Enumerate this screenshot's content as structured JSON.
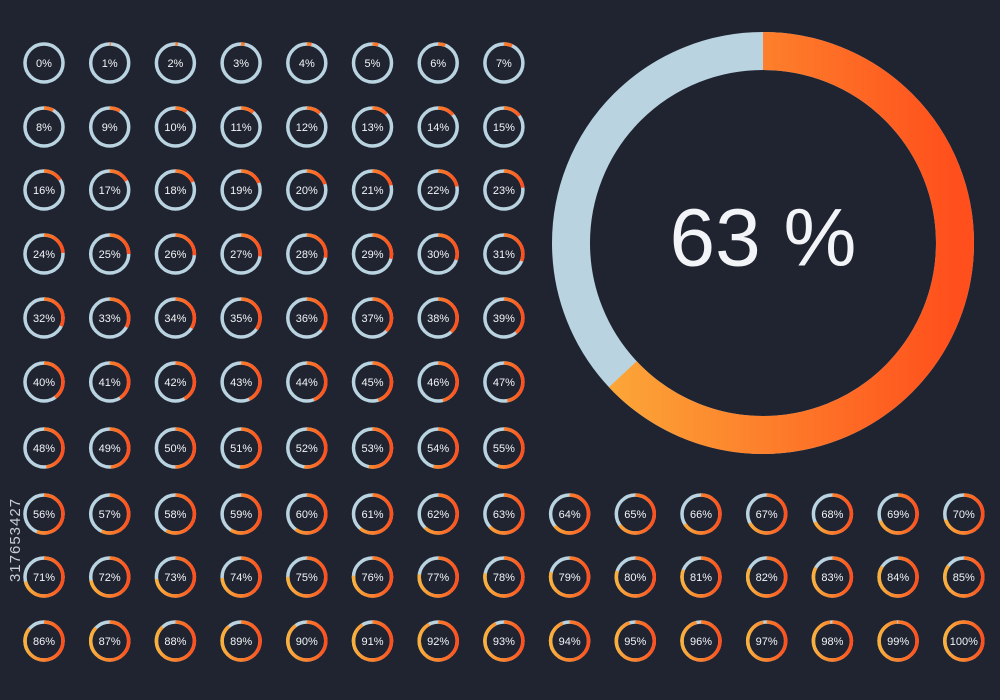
{
  "rings": [
    {
      "value": 0,
      "label": "0%"
    },
    {
      "value": 1,
      "label": "1%"
    },
    {
      "value": 2,
      "label": "2%"
    },
    {
      "value": 3,
      "label": "3%"
    },
    {
      "value": 4,
      "label": "4%"
    },
    {
      "value": 5,
      "label": "5%"
    },
    {
      "value": 6,
      "label": "6%"
    },
    {
      "value": 7,
      "label": "7%"
    },
    {
      "value": 8,
      "label": "8%"
    },
    {
      "value": 9,
      "label": "9%"
    },
    {
      "value": 10,
      "label": "10%"
    },
    {
      "value": 11,
      "label": "11%"
    },
    {
      "value": 12,
      "label": "12%"
    },
    {
      "value": 13,
      "label": "13%"
    },
    {
      "value": 14,
      "label": "14%"
    },
    {
      "value": 15,
      "label": "15%"
    },
    {
      "value": 16,
      "label": "16%"
    },
    {
      "value": 17,
      "label": "17%"
    },
    {
      "value": 18,
      "label": "18%"
    },
    {
      "value": 19,
      "label": "19%"
    },
    {
      "value": 20,
      "label": "20%"
    },
    {
      "value": 21,
      "label": "21%"
    },
    {
      "value": 22,
      "label": "22%"
    },
    {
      "value": 23,
      "label": "23%"
    },
    {
      "value": 24,
      "label": "24%"
    },
    {
      "value": 25,
      "label": "25%"
    },
    {
      "value": 26,
      "label": "26%"
    },
    {
      "value": 27,
      "label": "27%"
    },
    {
      "value": 28,
      "label": "28%"
    },
    {
      "value": 29,
      "label": "29%"
    },
    {
      "value": 30,
      "label": "30%"
    },
    {
      "value": 31,
      "label": "31%"
    },
    {
      "value": 32,
      "label": "32%"
    },
    {
      "value": 33,
      "label": "33%"
    },
    {
      "value": 34,
      "label": "34%"
    },
    {
      "value": 35,
      "label": "35%"
    },
    {
      "value": 36,
      "label": "36%"
    },
    {
      "value": 37,
      "label": "37%"
    },
    {
      "value": 38,
      "label": "38%"
    },
    {
      "value": 39,
      "label": "39%"
    },
    {
      "value": 40,
      "label": "40%"
    },
    {
      "value": 41,
      "label": "41%"
    },
    {
      "value": 42,
      "label": "42%"
    },
    {
      "value": 43,
      "label": "43%"
    },
    {
      "value": 44,
      "label": "44%"
    },
    {
      "value": 45,
      "label": "45%"
    },
    {
      "value": 46,
      "label": "46%"
    },
    {
      "value": 47,
      "label": "47%"
    },
    {
      "value": 48,
      "label": "48%"
    },
    {
      "value": 49,
      "label": "49%"
    },
    {
      "value": 50,
      "label": "50%"
    },
    {
      "value": 51,
      "label": "51%"
    },
    {
      "value": 52,
      "label": "52%"
    },
    {
      "value": 53,
      "label": "53%"
    },
    {
      "value": 54,
      "label": "54%"
    },
    {
      "value": 55,
      "label": "55%"
    },
    {
      "value": 56,
      "label": "56%"
    },
    {
      "value": 57,
      "label": "57%"
    },
    {
      "value": 58,
      "label": "58%"
    },
    {
      "value": 59,
      "label": "59%"
    },
    {
      "value": 60,
      "label": "60%"
    },
    {
      "value": 61,
      "label": "61%"
    },
    {
      "value": 62,
      "label": "62%"
    },
    {
      "value": 63,
      "label": "63%"
    },
    {
      "value": 64,
      "label": "64%"
    },
    {
      "value": 65,
      "label": "65%"
    },
    {
      "value": 66,
      "label": "66%"
    },
    {
      "value": 67,
      "label": "67%"
    },
    {
      "value": 68,
      "label": "68%"
    },
    {
      "value": 69,
      "label": "69%"
    },
    {
      "value": 70,
      "label": "70%"
    },
    {
      "value": 71,
      "label": "71%"
    },
    {
      "value": 72,
      "label": "72%"
    },
    {
      "value": 73,
      "label": "73%"
    },
    {
      "value": 74,
      "label": "74%"
    },
    {
      "value": 75,
      "label": "75%"
    },
    {
      "value": 76,
      "label": "76%"
    },
    {
      "value": 77,
      "label": "77%"
    },
    {
      "value": 78,
      "label": "78%"
    },
    {
      "value": 79,
      "label": "79%"
    },
    {
      "value": 80,
      "label": "80%"
    },
    {
      "value": 81,
      "label": "81%"
    },
    {
      "value": 82,
      "label": "82%"
    },
    {
      "value": 83,
      "label": "83%"
    },
    {
      "value": 84,
      "label": "84%"
    },
    {
      "value": 85,
      "label": "85%"
    },
    {
      "value": 86,
      "label": "86%"
    },
    {
      "value": 87,
      "label": "87%"
    },
    {
      "value": 88,
      "label": "88%"
    },
    {
      "value": 89,
      "label": "89%"
    },
    {
      "value": 90,
      "label": "90%"
    },
    {
      "value": 91,
      "label": "91%"
    },
    {
      "value": 92,
      "label": "92%"
    },
    {
      "value": 93,
      "label": "93%"
    },
    {
      "value": 94,
      "label": "94%"
    },
    {
      "value": 95,
      "label": "95%"
    },
    {
      "value": 96,
      "label": "96%"
    },
    {
      "value": 97,
      "label": "97%"
    },
    {
      "value": 98,
      "label": "98%"
    },
    {
      "value": 99,
      "label": "99%"
    },
    {
      "value": 100,
      "label": "100%"
    }
  ],
  "featured": {
    "value": 63,
    "label": "63 %"
  },
  "stock_id": "317653427"
}
